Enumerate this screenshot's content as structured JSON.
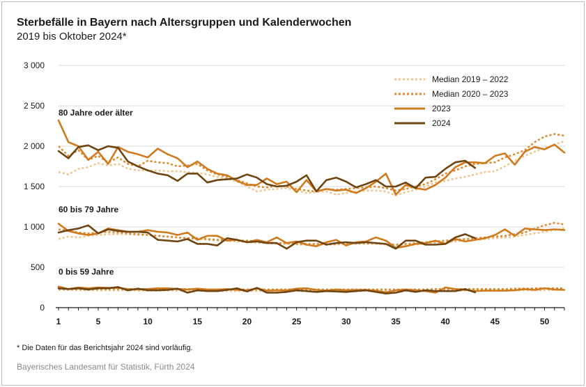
{
  "chart_data": {
    "type": "line",
    "title": "Sterbefälle in Bayern nach Altersgruppen und Kalenderwochen",
    "subtitle": "2019 bis Oktober 2024*",
    "xlim": [
      1,
      52
    ],
    "ylim": [
      0,
      3000
    ],
    "x_ticks": [
      1,
      5,
      10,
      15,
      20,
      25,
      30,
      35,
      40,
      45,
      50
    ],
    "y_ticks": [
      {
        "value": 0,
        "label": "0"
      },
      {
        "value": 500,
        "label": "500"
      },
      {
        "value": 1000,
        "label": "1 000"
      },
      {
        "value": 1500,
        "label": "1 500"
      },
      {
        "value": 2000,
        "label": "2 000"
      },
      {
        "value": 2500,
        "label": "2 500"
      },
      {
        "value": 3000,
        "label": "3 000"
      }
    ],
    "grid": true,
    "legend": "top-right",
    "groups": [
      {
        "label": "80 Jahre oder älter",
        "label_value": 2380
      },
      {
        "label": "60 bis 79 Jahre",
        "label_value": 1180
      },
      {
        "label": "0 bis 59 Jahre",
        "label_value": 410
      }
    ],
    "series": [
      {
        "name": "Median 2019 – 2022",
        "color": "#f3c58d",
        "dash": "dot",
        "groups": [
          [
            1680,
            1650,
            1720,
            1740,
            1790,
            1760,
            1780,
            1720,
            1700,
            1700,
            1700,
            1690,
            1690,
            1680,
            1670,
            1650,
            1620,
            1600,
            1560,
            1500,
            1440,
            1460,
            1470,
            1480,
            1450,
            1420,
            1430,
            1440,
            1400,
            1420,
            1440,
            1450,
            1450,
            1440,
            1390,
            1430,
            1460,
            1500,
            1550,
            1570,
            1600,
            1620,
            1650,
            1680,
            1690,
            1750,
            1820,
            1880,
            1930,
            1980,
            2020,
            2060
          ],
          [
            850,
            880,
            870,
            890,
            900,
            910,
            910,
            910,
            900,
            900,
            890,
            880,
            870,
            860,
            850,
            840,
            830,
            830,
            820,
            810,
            800,
            800,
            790,
            790,
            780,
            780,
            780,
            780,
            780,
            790,
            790,
            790,
            790,
            780,
            770,
            780,
            780,
            790,
            800,
            810,
            820,
            830,
            840,
            850,
            860,
            870,
            880,
            900,
            920,
            940,
            960,
            980
          ],
          [
            220,
            220,
            215,
            215,
            215,
            215,
            215,
            215,
            210,
            210,
            210,
            210,
            210,
            210,
            210,
            205,
            205,
            205,
            205,
            205,
            205,
            205,
            205,
            205,
            205,
            205,
            205,
            205,
            205,
            205,
            205,
            205,
            205,
            205,
            205,
            205,
            205,
            205,
            205,
            205,
            210,
            210,
            210,
            210,
            210,
            210,
            215,
            215,
            215,
            215,
            220,
            220
          ]
        ]
      },
      {
        "name": "Median 2020 – 2023",
        "color": "#e08a2c",
        "dash": "dot",
        "groups": [
          [
            2000,
            1880,
            1950,
            1830,
            1880,
            1800,
            1860,
            1780,
            1750,
            1820,
            1800,
            1790,
            1750,
            1760,
            1780,
            1700,
            1650,
            1620,
            1580,
            1540,
            1500,
            1490,
            1510,
            1500,
            1470,
            1450,
            1440,
            1470,
            1460,
            1470,
            1480,
            1490,
            1500,
            1480,
            1450,
            1470,
            1500,
            1530,
            1590,
            1660,
            1700,
            1750,
            1780,
            1790,
            1800,
            1860,
            1900,
            1950,
            2050,
            2120,
            2150,
            2130
          ],
          [
            970,
            950,
            930,
            920,
            930,
            940,
            930,
            920,
            910,
            900,
            890,
            880,
            870,
            860,
            860,
            850,
            840,
            840,
            830,
            830,
            820,
            810,
            800,
            800,
            790,
            790,
            790,
            790,
            790,
            800,
            800,
            800,
            800,
            790,
            780,
            790,
            800,
            810,
            820,
            830,
            840,
            850,
            860,
            870,
            880,
            890,
            910,
            930,
            980,
            1020,
            1050,
            1030
          ],
          [
            230,
            230,
            230,
            230,
            230,
            230,
            230,
            230,
            230,
            230,
            230,
            230,
            230,
            230,
            225,
            225,
            225,
            225,
            225,
            225,
            225,
            225,
            225,
            225,
            225,
            225,
            225,
            225,
            225,
            225,
            225,
            225,
            225,
            225,
            225,
            225,
            225,
            225,
            230,
            230,
            230,
            230,
            230,
            230,
            230,
            230,
            235,
            235,
            240,
            240,
            240,
            240
          ]
        ]
      },
      {
        "name": "2023",
        "color": "#d07a1e",
        "dash": "solid",
        "groups": [
          [
            2320,
            2050,
            2000,
            1830,
            1930,
            1780,
            1990,
            1930,
            1900,
            1860,
            1970,
            1900,
            1850,
            1740,
            1810,
            1720,
            1660,
            1640,
            1570,
            1520,
            1520,
            1600,
            1530,
            1560,
            1430,
            1580,
            1440,
            1470,
            1450,
            1460,
            1420,
            1480,
            1560,
            1660,
            1400,
            1520,
            1480,
            1460,
            1520,
            1610,
            1740,
            1800,
            1800,
            1790,
            1880,
            1910,
            1770,
            1930,
            1990,
            1960,
            2020,
            1920
          ],
          [
            1040,
            950,
            920,
            900,
            920,
            980,
            960,
            940,
            940,
            960,
            940,
            930,
            900,
            930,
            840,
            890,
            890,
            830,
            840,
            810,
            840,
            810,
            870,
            800,
            820,
            780,
            760,
            810,
            840,
            770,
            810,
            820,
            870,
            830,
            740,
            760,
            790,
            800,
            830,
            790,
            850,
            820,
            840,
            860,
            900,
            970,
            890,
            980,
            970,
            960,
            970,
            960
          ],
          [
            260,
            230,
            250,
            240,
            250,
            245,
            245,
            230,
            225,
            230,
            240,
            240,
            230,
            225,
            235,
            225,
            225,
            230,
            220,
            215,
            240,
            210,
            215,
            215,
            235,
            240,
            220,
            210,
            225,
            215,
            220,
            220,
            210,
            190,
            215,
            225,
            215,
            205,
            185,
            250,
            230,
            220,
            205,
            210,
            210,
            210,
            215,
            230,
            220,
            240,
            225,
            220
          ]
        ]
      },
      {
        "name": "2024",
        "color": "#6e4410",
        "dash": "solid",
        "groups": [
          [
            1940,
            1850,
            1990,
            2010,
            1950,
            2000,
            1980,
            1810,
            1750,
            1700,
            1660,
            1640,
            1570,
            1660,
            1660,
            1550,
            1580,
            1590,
            1600,
            1650,
            1610,
            1530,
            1500,
            1510,
            1560,
            1640,
            1440,
            1580,
            1610,
            1560,
            1490,
            1530,
            1580,
            1500,
            1500,
            1550,
            1480,
            1610,
            1620,
            1720,
            1800,
            1820,
            1730
          ],
          [
            930,
            960,
            980,
            1020,
            920,
            970,
            950,
            940,
            940,
            930,
            840,
            830,
            820,
            850,
            790,
            790,
            770,
            860,
            840,
            810,
            820,
            800,
            800,
            730,
            810,
            830,
            830,
            780,
            800,
            810,
            800,
            810,
            800,
            790,
            730,
            830,
            830,
            780,
            780,
            790,
            870,
            910,
            860
          ],
          [
            240,
            230,
            240,
            225,
            240,
            240,
            255,
            215,
            235,
            215,
            215,
            220,
            235,
            185,
            215,
            205,
            205,
            220,
            240,
            200,
            245,
            185,
            185,
            195,
            215,
            205,
            195,
            205,
            200,
            195,
            205,
            215,
            195,
            175,
            185,
            215,
            195,
            215,
            205,
            205,
            205,
            230,
            190
          ]
        ]
      }
    ]
  },
  "footnote": "* Die Daten für das Berichtsjahr 2024 sind vorläufig.",
  "source": "Bayerisches Landesamt für Statistik, Fürth 2024"
}
